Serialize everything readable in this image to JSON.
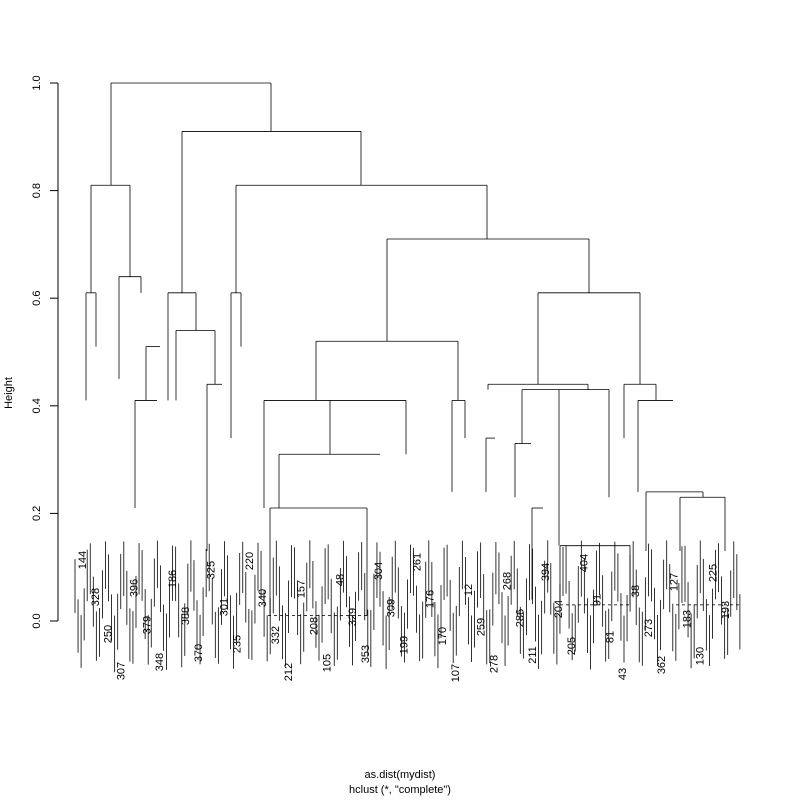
{
  "chart_data": {
    "type": "dendrogram",
    "title": "",
    "xlabel": "as.dist(mydist)",
    "sublabel": "hclust (*, \"complete\")",
    "ylabel": "Height",
    "ylim": [
      0,
      1.0
    ],
    "yticks": [
      "0.0",
      "0.2",
      "0.4",
      "0.6",
      "0.8",
      "1.0"
    ],
    "merges": [
      {
        "height": 1.0,
        "description": "root merge"
      },
      {
        "height": 0.91,
        "description": "right main cluster"
      },
      {
        "height": 0.81,
        "description": "left main cluster"
      },
      {
        "height": 0.81,
        "description": "right sub-cluster"
      },
      {
        "height": 0.71,
        "description": "right sub-cluster"
      },
      {
        "height": 0.64,
        "description": "left sub-cluster"
      },
      {
        "height": 0.61,
        "description": "multiple sub-clusters"
      },
      {
        "height": 0.54,
        "description": "sub-cluster"
      },
      {
        "height": 0.52,
        "description": "middle sub-cluster"
      },
      {
        "height": 0.51,
        "description": "sub-cluster"
      },
      {
        "height": 0.44,
        "description": "sub-clusters"
      },
      {
        "height": 0.43,
        "description": "sub-cluster"
      },
      {
        "height": 0.41,
        "description": "multiple sub-clusters"
      },
      {
        "height": 0.34,
        "description": "sub-clusters"
      },
      {
        "height": 0.33,
        "description": "sub-clusters"
      },
      {
        "height": 0.31,
        "description": "sub-clusters"
      },
      {
        "height": 0.24,
        "description": "sub-clusters"
      },
      {
        "height": 0.23,
        "description": "sub-clusters"
      },
      {
        "height": 0.21,
        "description": "sub-clusters"
      },
      {
        "height": 0.14,
        "description": "sub-clusters"
      },
      {
        "height": 0.13,
        "description": "sub-clusters"
      },
      {
        "height": 0.11,
        "description": "sub-clusters"
      },
      {
        "height": 0.04,
        "description": "sub-clusters"
      },
      {
        "height": 0.03,
        "description": "many leaf merges"
      },
      {
        "height": 0.01,
        "description": "many leaf merges"
      }
    ],
    "leaf_labels": [
      "144",
      "328",
      "250",
      "307",
      "396",
      "379",
      "348",
      "186",
      "388",
      "370",
      "325",
      "301",
      "235",
      "220",
      "340",
      "332",
      "212",
      "157",
      "208",
      "105",
      "48",
      "329",
      "353",
      "304",
      "309",
      "199",
      "261",
      "176",
      "170",
      "107",
      "12",
      "259",
      "278",
      "268",
      "286",
      "211",
      "394",
      "204",
      "205",
      "404",
      "91",
      "81",
      "43",
      "38",
      "273",
      "362",
      "127",
      "183",
      "130",
      "225",
      "193"
    ]
  }
}
